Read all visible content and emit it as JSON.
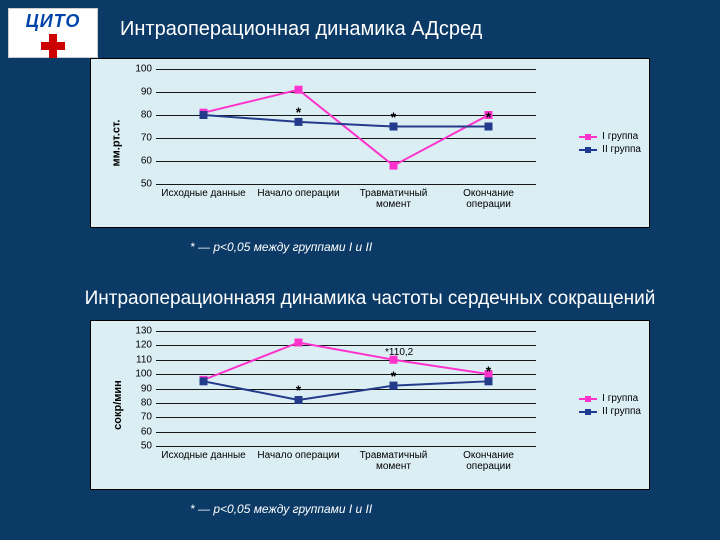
{
  "logo_text": "ЦИТО",
  "title1": "Интраоперационная динамика АДсред",
  "title2": "Интраоперационнаяя динамика частоты сердечных сокращений",
  "footnote": "* — p<0,05 между группами I и II",
  "legend": {
    "series1": "I группа",
    "series2": "II группа"
  },
  "chart1": {
    "type": "line",
    "ylabel": "мм.рт.ст.",
    "ylim": [
      50,
      100
    ],
    "ytick_step": 10,
    "yticks": [
      50,
      60,
      70,
      80,
      90,
      100
    ],
    "categories": [
      "Исходные данные",
      "Начало операции",
      "Травматичный момент",
      "Окончание операции"
    ],
    "series": [
      {
        "name": "I группа",
        "color": "#ff33cc",
        "marker": "square",
        "values": [
          81,
          91,
          58,
          80
        ]
      },
      {
        "name": "II группа",
        "color": "#233b8a",
        "marker": "square",
        "values": [
          80,
          77,
          75,
          75
        ]
      }
    ],
    "stars": [
      1,
      2,
      3
    ],
    "background_color": "#dbeef4",
    "grid_color": "#000000",
    "label_fontsize": 10
  },
  "chart2": {
    "type": "line",
    "ylabel": "сокр/мин",
    "ylim": [
      50,
      130
    ],
    "ytick_step": 10,
    "yticks": [
      50,
      60,
      70,
      80,
      90,
      100,
      110,
      120,
      130
    ],
    "categories": [
      "Исходные данные",
      "Начало операции",
      "Травматичный момент",
      "Окончание операции"
    ],
    "series": [
      {
        "name": "I группа",
        "color": "#ff33cc",
        "marker": "square",
        "values": [
          96,
          122,
          110,
          100
        ],
        "annot_idx": 2,
        "annot_text": "*110,2"
      },
      {
        "name": "II группа",
        "color": "#233b8a",
        "marker": "square",
        "values": [
          95,
          82,
          92,
          95
        ]
      }
    ],
    "stars": [
      1,
      2,
      3
    ],
    "background_color": "#dbeef4",
    "grid_color": "#000000",
    "label_fontsize": 10
  },
  "colors": {
    "slide_bg": "#0b3a66",
    "chart_bg": "#dbeef4",
    "pink": "#ff33cc",
    "blue": "#233b8a"
  }
}
